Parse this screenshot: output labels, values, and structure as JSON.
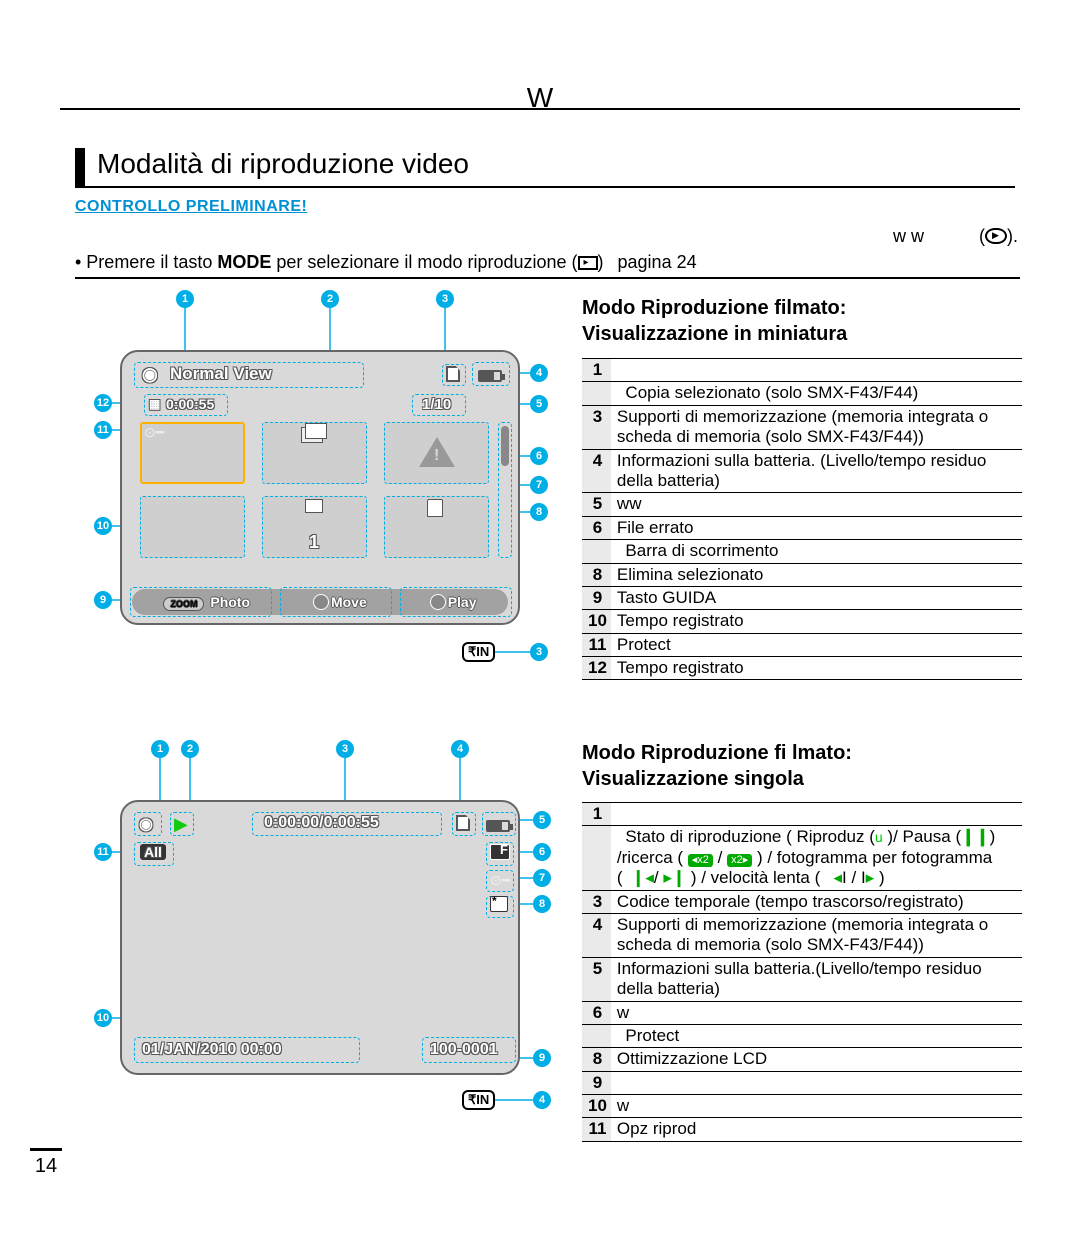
{
  "page": {
    "header_glyph": "W",
    "page_number": "14",
    "section_title": "Modalità di riproduzione video",
    "check_label": "CONTROLLO PRELIMINARE!",
    "bullet1_tail": "w   w",
    "bullet2_pre": "•  Premere il tasto ",
    "bullet2_bold": "MODE",
    "bullet2_post": " per selezionare il modo riproduzione (",
    "bullet2_tail": ")   pagina 24",
    "in_badge": "IN"
  },
  "screen1": {
    "title": "Normal View",
    "time": "0:00:55",
    "counter": "1/10",
    "big_num": "1",
    "bar_left_label": "Photo",
    "bar_left_badge": "ZOOM",
    "bar_mid": "Move",
    "bar_right": "Play"
  },
  "screen2": {
    "timecode": "0:00:00/0:00:55",
    "all_badge": "All",
    "date": "01/JAN/2010 00:00",
    "file": "100-0001"
  },
  "headings": {
    "h1a": "Modo Riproduzione filmato:",
    "h1b": "Visualizzazione in miniatura",
    "h2a": "Modo Riproduzione fi lmato:",
    "h2b": "Visualizzazione singola"
  },
  "table1": [
    {
      "n": "1",
      "t": ""
    },
    {
      "n": "",
      "t": " Copia selezionato (solo SMX-F43/F44)"
    },
    {
      "n": "3",
      "t": "Supporti di memorizzazione (memoria integrata o scheda di memoria (solo SMX-F43/F44))"
    },
    {
      "n": "4",
      "t": "Informazioni sulla batteria. (Livello/tempo residuo della batteria)"
    },
    {
      "n": "5",
      "t": "                                         ww"
    },
    {
      "n": "6",
      "t": "File errato"
    },
    {
      "n": "",
      "t": " Barra di scorrimento"
    },
    {
      "n": "8",
      "t": "Elimina selezionato"
    },
    {
      "n": "9",
      "t": "Tasto GUIDA"
    },
    {
      "n": "10",
      "t": "Tempo registrato"
    },
    {
      "n": "11",
      "t": "Protect"
    },
    {
      "n": "12",
      "t": "Tempo registrato"
    }
  ],
  "table2": [
    {
      "n": "1",
      "t": ""
    },
    {
      "n": "",
      "html": " Stato di riproduzione ( Riproduz (<span class='tiny-play'>u</span> )/ Pausa (<span style='color:#0a0;font-weight:bold'>❙❙</span>) /ricerca ( <span class='speed-chip'>◂x2</span> / <span class='speed-chip'>x2▸</span> ) / fotogramma per fotogramma<br>( <span style='color:#0a0'>❙◂</span>/ <span style='color:#0a0'>▸❙</span> ) / velocità lenta (  <span style='color:#0a0'>◂</span>I / I<span style='color:#0a0'>▸</span> )"
    },
    {
      "n": "3",
      "t": "Codice temporale (tempo trascorso/registrato)"
    },
    {
      "n": "4",
      "t": "Supporti di memorizzazione (memoria integrata o scheda di memoria (solo SMX-F43/F44))"
    },
    {
      "n": "5",
      "t": "Informazioni sulla batteria.(Livello/tempo residuo della batteria)"
    },
    {
      "n": "6",
      "t": "                                                                                    w"
    },
    {
      "n": "",
      "t": " Protect"
    },
    {
      "n": "8",
      "t": "Ottimizzazione LCD"
    },
    {
      "n": "9",
      "t": ""
    },
    {
      "n": "10",
      "t": "       w"
    },
    {
      "n": "11",
      "t": "Opz riprod"
    }
  ],
  "colors": {
    "accent": "#00aee6",
    "link": "#0091d4",
    "screen_bg": "#d9d9d9"
  }
}
